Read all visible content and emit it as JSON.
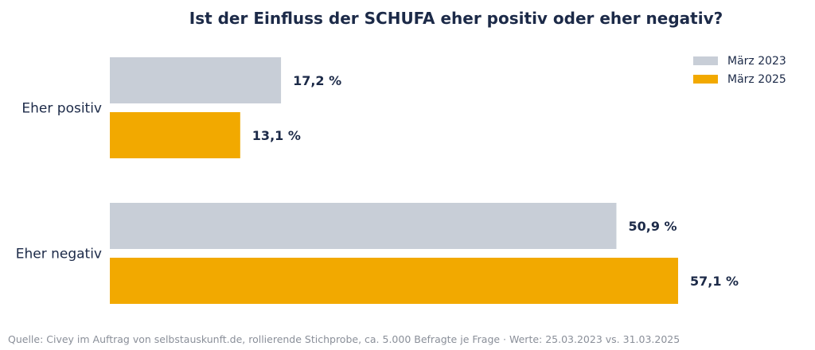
{
  "title": "Ist der Einfluss der SCHUFA eher positiv oder eher negativ?",
  "source": "Quelle: Civey im Auftrag von selbstauskunft.de, rollierende Stichprobe, ca. 5.000 Befragte je Frage · Werte: 25.03.2023 vs. 31.03.2025",
  "chart_data": {
    "type": "bar",
    "orientation": "horizontal",
    "title": "Ist der Einfluss der SCHUFA eher positiv oder eher negativ?",
    "categories": [
      "Eher positiv",
      "Eher negativ"
    ],
    "series": [
      {
        "name": "März 2023",
        "values": [
          17.2,
          50.9
        ],
        "labels": [
          "17,2 %",
          "50,9 %"
        ],
        "color": "#c8ced7"
      },
      {
        "name": "März 2025",
        "values": [
          13.1,
          57.1
        ],
        "labels": [
          "13,1 %",
          "57,1 %"
        ],
        "color": "#f2a900"
      }
    ],
    "xlim": [
      0,
      57.1
    ],
    "grid": false,
    "legend_position": "top-right"
  }
}
